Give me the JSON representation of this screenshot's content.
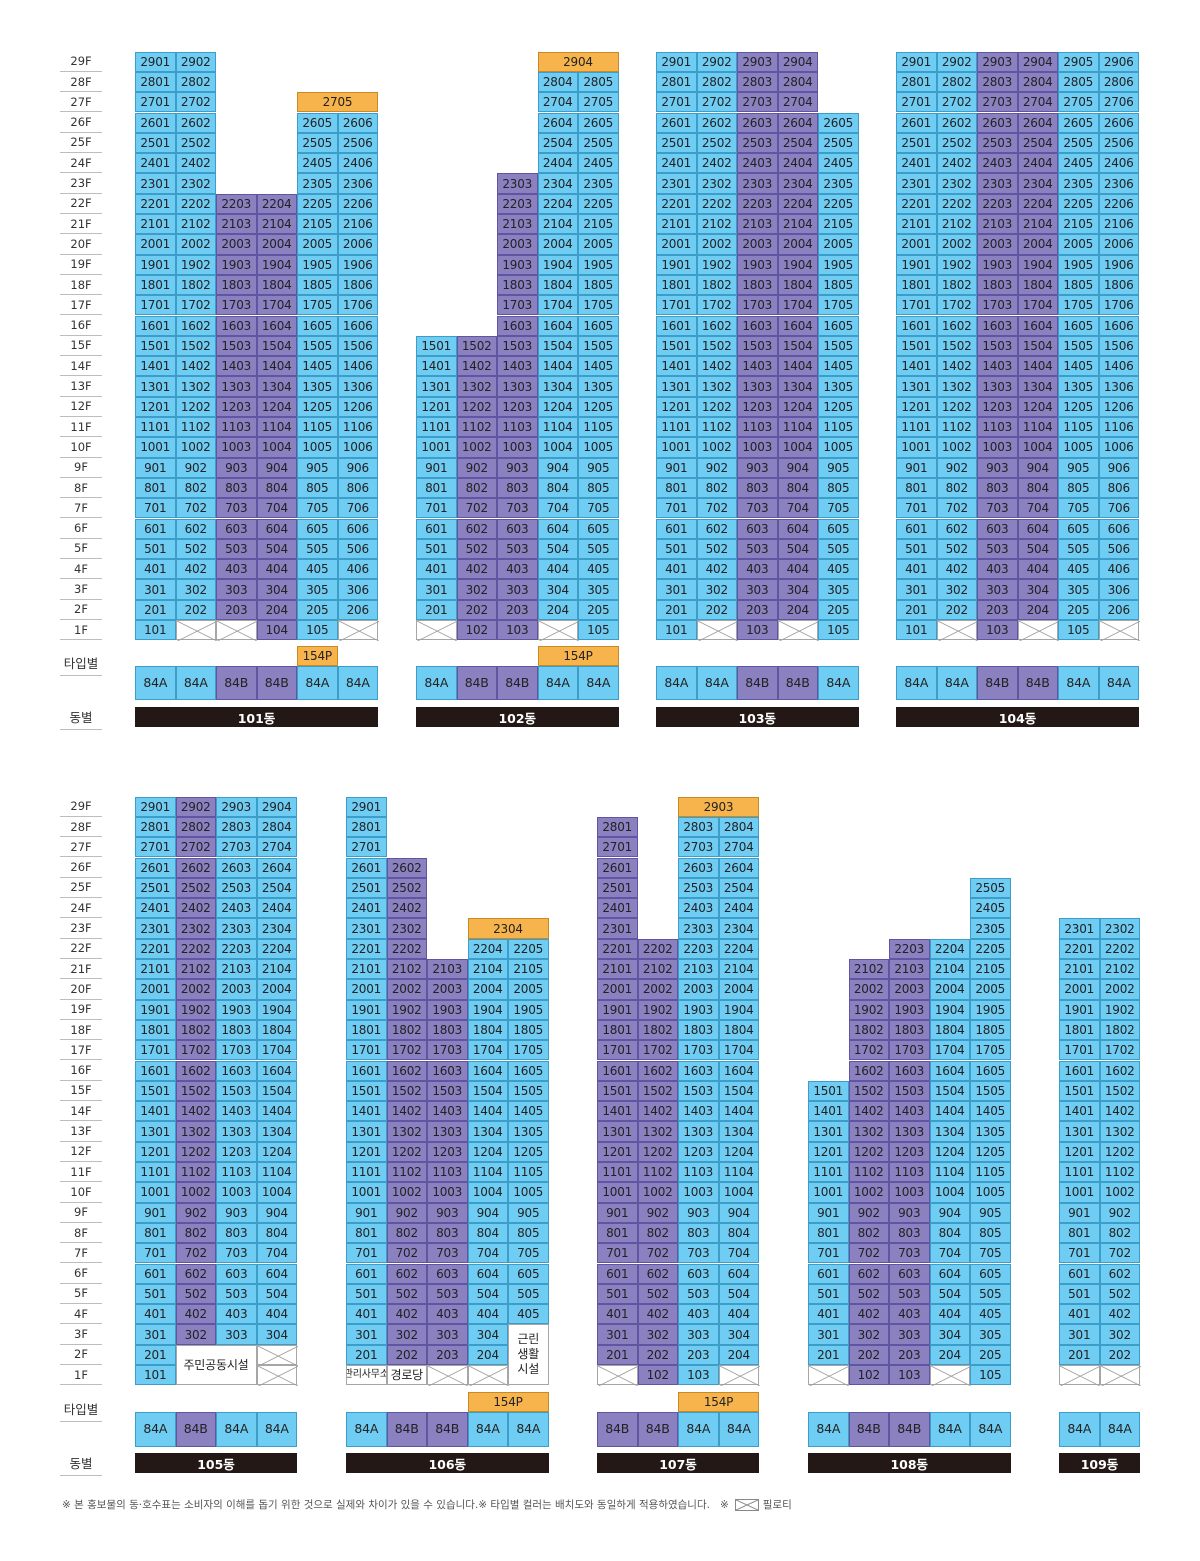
{
  "floors": [
    "1F",
    "2F",
    "3F",
    "4F",
    "5F",
    "6F",
    "7F",
    "8F",
    "9F",
    "10F",
    "11F",
    "12F",
    "13F",
    "14F",
    "15F",
    "16F",
    "17F",
    "18F",
    "19F",
    "20F",
    "21F",
    "22F",
    "23F",
    "24F",
    "25F",
    "26F",
    "27F",
    "28F",
    "29F"
  ],
  "labels": {
    "type_row": "타입별",
    "building_row": "동별"
  },
  "colors": {
    "type_84A": "#6fcdf4",
    "type_84B": "#8b81c1",
    "type_154P": "#f7b44d",
    "building_bar": "#231815"
  },
  "footnote": {
    "text": "※ 본 홍보물의 동·호수표는 소비자의 이해를 돕기 위한 것으로 실제와 차이가 있을 수 있습니다.※ 타입별 컬러는 배치도와 동일하게 적용하였습니다.",
    "pilotis_prefix": "※",
    "pilotis_label": "필로티"
  },
  "buildings": [
    {
      "name": "101동",
      "columns": [
        {
          "type": "84A",
          "suffix": "01",
          "min": 2,
          "max": 29,
          "first_floor": "101"
        },
        {
          "type": "84A",
          "suffix": "02",
          "min": 2,
          "max": 29,
          "first_floor": "pilotis"
        },
        {
          "type": "84B",
          "suffix": "03",
          "min": 2,
          "max": 22,
          "first_floor": "pilotis"
        },
        {
          "type": "84B",
          "suffix": "04",
          "min": 1,
          "max": 22,
          "first_floor": "104"
        },
        {
          "type": "84A",
          "suffix": "05",
          "min": 1,
          "max": 26,
          "first_floor": "105"
        },
        {
          "type": "84A",
          "suffix": "06",
          "min": 2,
          "max": 26,
          "first_floor": "pilotis"
        }
      ],
      "penthouses": [
        {
          "label": "2705",
          "col_start": 4,
          "col_span": 2,
          "floor": 27
        }
      ],
      "type_penthouse": [
        {
          "label": "154P",
          "col_start": 4,
          "col_span": 1
        }
      ],
      "overrides": {},
      "specials": []
    },
    {
      "name": "102동",
      "columns": [
        {
          "type": "84A",
          "suffix": "01",
          "min": 2,
          "max": 15,
          "first_floor": "pilotis"
        },
        {
          "type": "84B",
          "suffix": "02",
          "min": 1,
          "max": 15,
          "first_floor": "102"
        },
        {
          "type": "84B",
          "suffix": "03",
          "min": 1,
          "max": 23,
          "first_floor": "103"
        },
        {
          "type": "84A",
          "suffix": "04",
          "min": 2,
          "max": 28,
          "first_floor": "pilotis"
        },
        {
          "type": "84A",
          "suffix": "05",
          "min": 1,
          "max": 28,
          "first_floor": "105"
        }
      ],
      "penthouses": [
        {
          "label": "2904",
          "col_start": 3,
          "col_span": 2,
          "floor": 29
        }
      ],
      "type_penthouse": [
        {
          "label": "154P",
          "col_start": 3,
          "col_span": 2
        }
      ],
      "overrides": {
        "1:3": "305"
      },
      "specials": []
    },
    {
      "name": "103동",
      "columns": [
        {
          "type": "84A",
          "suffix": "01",
          "min": 1,
          "max": 29,
          "first_floor": "101"
        },
        {
          "type": "84A",
          "suffix": "02",
          "min": 2,
          "max": 29,
          "first_floor": "pilotis"
        },
        {
          "type": "84B",
          "suffix": "03",
          "min": 1,
          "max": 29,
          "first_floor": "103"
        },
        {
          "type": "84B",
          "suffix": "04",
          "min": 2,
          "max": 29,
          "first_floor": "pilotis"
        },
        {
          "type": "84A",
          "suffix": "05",
          "min": 1,
          "max": 26,
          "first_floor": "105"
        }
      ],
      "penthouses": [],
      "type_penthouse": [],
      "overrides": {},
      "specials": []
    },
    {
      "name": "104동",
      "columns": [
        {
          "type": "84A",
          "suffix": "01",
          "min": 1,
          "max": 29,
          "first_floor": "101"
        },
        {
          "type": "84A",
          "suffix": "02",
          "min": 2,
          "max": 29,
          "first_floor": "pilotis"
        },
        {
          "type": "84B",
          "suffix": "03",
          "min": 1,
          "max": 29,
          "first_floor": "103"
        },
        {
          "type": "84B",
          "suffix": "04",
          "min": 2,
          "max": 29,
          "first_floor": "pilotis"
        },
        {
          "type": "84A",
          "suffix": "05",
          "min": 1,
          "max": 29,
          "first_floor": "105"
        },
        {
          "type": "84A",
          "suffix": "06",
          "min": 2,
          "max": 29,
          "first_floor": "pilotis"
        }
      ],
      "penthouses": [],
      "type_penthouse": [],
      "overrides": {},
      "specials": []
    },
    {
      "name": "105동",
      "columns": [
        {
          "type": "84A",
          "suffix": "01",
          "min": 1,
          "max": 29,
          "first_floor": "101"
        },
        {
          "type": "84B",
          "suffix": "02",
          "min": 3,
          "max": 29,
          "first_floor": "none"
        },
        {
          "type": "84A",
          "suffix": "03",
          "min": 3,
          "max": 29,
          "first_floor": "none"
        },
        {
          "type": "84A",
          "suffix": "04",
          "min": 3,
          "max": 29,
          "first_floor": "none"
        }
      ],
      "penthouses": [],
      "type_penthouse": [],
      "overrides": {},
      "specials": [
        {
          "label": "주민공동시설",
          "col_start": 1,
          "col_span": 2,
          "floor_low": 1,
          "floor_high": 2
        },
        {
          "label": "",
          "col_start": 3,
          "col_span": 1,
          "floor_low": 2,
          "floor_high": 2,
          "pilotis": true
        },
        {
          "label": "",
          "col_start": 3,
          "col_span": 1,
          "floor_low": 1,
          "floor_high": 1,
          "pilotis": true
        }
      ]
    },
    {
      "name": "106동",
      "columns": [
        {
          "type": "84A",
          "suffix": "01",
          "min": 2,
          "max": 29,
          "first_floor": "none"
        },
        {
          "type": "84B",
          "suffix": "02",
          "min": 2,
          "max": 26,
          "first_floor": "none"
        },
        {
          "type": "84B",
          "suffix": "03",
          "min": 2,
          "max": 21,
          "first_floor": "none"
        },
        {
          "type": "84A",
          "suffix": "04",
          "min": 2,
          "max": 22,
          "first_floor": "none"
        },
        {
          "type": "84A",
          "suffix": "05",
          "min": 3,
          "max": 22,
          "first_floor": "none"
        }
      ],
      "penthouses": [
        {
          "label": "2304",
          "col_start": 3,
          "col_span": 2,
          "floor": 23
        }
      ],
      "type_penthouse": [
        {
          "label": "154P",
          "col_start": 3,
          "col_span": 2
        }
      ],
      "overrides": {},
      "specials": [
        {
          "label": "관리사무소",
          "col_start": 0,
          "col_span": 1,
          "floor_low": 1,
          "floor_high": 1,
          "small": true
        },
        {
          "label": "경로당",
          "col_start": 1,
          "col_span": 1,
          "floor_low": 1,
          "floor_high": 1
        },
        {
          "label": "",
          "col_start": 2,
          "col_span": 1,
          "floor_low": 1,
          "floor_high": 1,
          "pilotis": true
        },
        {
          "label": "",
          "col_start": 3,
          "col_span": 1,
          "floor_low": 1,
          "floor_high": 1,
          "pilotis": true
        },
        {
          "label": "근린\n생활\n시설",
          "col_start": 4,
          "col_span": 1,
          "floor_low": 1,
          "floor_high": 3
        }
      ]
    },
    {
      "name": "107동",
      "columns": [
        {
          "type": "84B",
          "suffix": "01",
          "min": 2,
          "max": 28,
          "first_floor": "pilotis"
        },
        {
          "type": "84B",
          "suffix": "02",
          "min": 1,
          "max": 22,
          "first_floor": "102"
        },
        {
          "type": "84A",
          "suffix": "03",
          "min": 1,
          "max": 28,
          "first_floor": "103"
        },
        {
          "type": "84A",
          "suffix": "04",
          "min": 2,
          "max": 28,
          "first_floor": "pilotis"
        }
      ],
      "penthouses": [
        {
          "label": "2903",
          "col_start": 2,
          "col_span": 2,
          "floor": 29
        }
      ],
      "type_penthouse": [
        {
          "label": "154P",
          "col_start": 2,
          "col_span": 2
        }
      ],
      "overrides": {},
      "specials": []
    },
    {
      "name": "108동",
      "columns": [
        {
          "type": "84A",
          "suffix": "01",
          "min": 2,
          "max": 15,
          "first_floor": "pilotis"
        },
        {
          "type": "84B",
          "suffix": "02",
          "min": 1,
          "max": 21,
          "first_floor": "102"
        },
        {
          "type": "84B",
          "suffix": "03",
          "min": 1,
          "max": 22,
          "first_floor": "103"
        },
        {
          "type": "84A",
          "suffix": "04",
          "min": 2,
          "max": 22,
          "first_floor": "pilotis"
        },
        {
          "type": "84A",
          "suffix": "05",
          "min": 1,
          "max": 25,
          "first_floor": "105"
        }
      ],
      "penthouses": [],
      "type_penthouse": [],
      "overrides": {},
      "specials": []
    },
    {
      "name": "109동",
      "columns": [
        {
          "type": "84A",
          "suffix": "01",
          "min": 2,
          "max": 23,
          "first_floor": "pilotis"
        },
        {
          "type": "84A",
          "suffix": "02",
          "min": 2,
          "max": 23,
          "first_floor": "pilotis"
        }
      ],
      "penthouses": [],
      "type_penthouse": [],
      "overrides": {},
      "specials": []
    }
  ]
}
